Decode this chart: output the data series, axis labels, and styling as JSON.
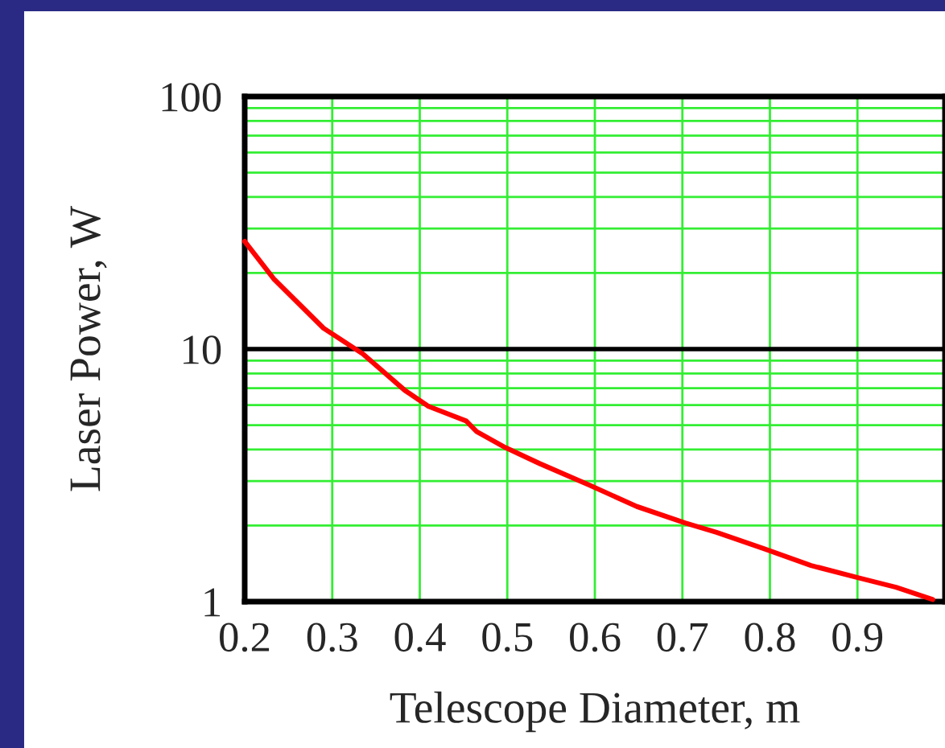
{
  "chart_data": {
    "type": "line",
    "xlabel": "Telescope Diameter, m",
    "ylabel": "Laser Power, W",
    "x": [
      0.2,
      0.233,
      0.29,
      0.335,
      0.383,
      0.41,
      0.453,
      0.465,
      0.498,
      0.537,
      0.594,
      0.648,
      0.703,
      0.739,
      0.793,
      0.847,
      0.902,
      0.944,
      0.986
    ],
    "series": [
      {
        "color": "#ff0000",
        "values": [
          26.7,
          19.0,
          12.1,
          9.57,
          6.86,
          5.93,
          5.19,
          4.71,
          4.07,
          3.52,
          2.89,
          2.38,
          2.05,
          1.88,
          1.62,
          1.39,
          1.24,
          1.14,
          1.02
        ]
      }
    ],
    "xlim": [
      0.2,
      1.0
    ],
    "xticks": [
      0.2,
      0.3,
      0.4,
      0.5,
      0.6,
      0.7,
      0.8,
      0.9
    ],
    "ylim": [
      1,
      100
    ],
    "yticks": [
      1,
      10,
      100
    ],
    "ref_lines": [
      {
        "axis": "y",
        "value": 10,
        "color": "#000000"
      }
    ],
    "log": "y",
    "grid": true,
    "marker": "none",
    "line_style": "solid"
  }
}
